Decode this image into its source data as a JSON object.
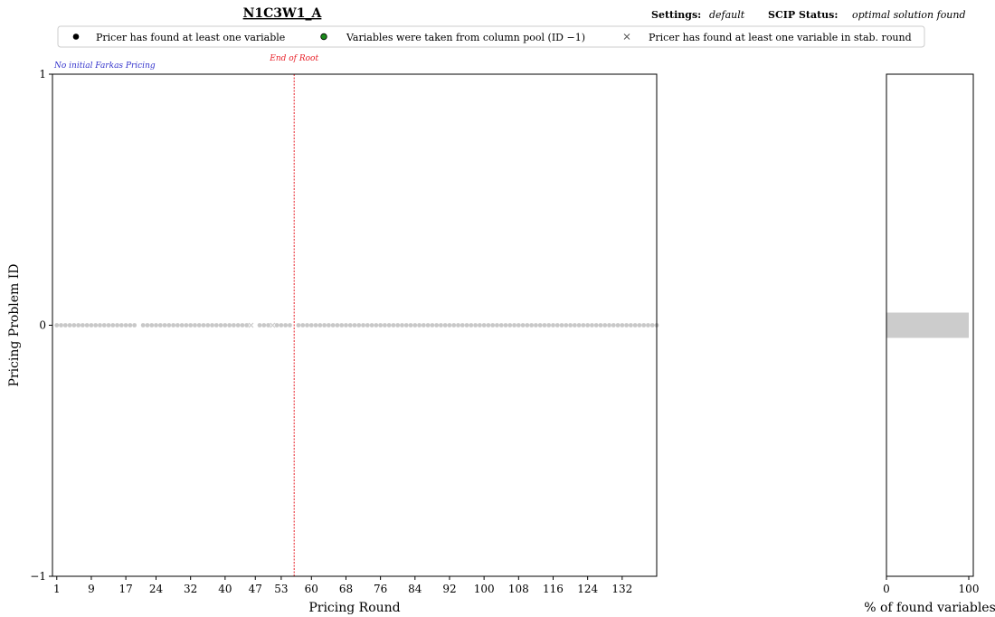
{
  "header": {
    "title": "N1C3W1_A",
    "settings_label": "Settings:",
    "settings_value": "default",
    "status_label": "SCIP Status:",
    "status_value": "optimal solution found"
  },
  "legend": {
    "items": [
      {
        "label": "Pricer has found at least one variable",
        "marker": "dot",
        "color": "#000000"
      },
      {
        "label": "Variables were taken from column pool (ID −1)",
        "marker": "dot",
        "color": "#1a8a1a"
      },
      {
        "label": "Pricer has found at least one variable in stab. round",
        "marker": "cross",
        "color": "#555555"
      }
    ]
  },
  "chart_data": [
    {
      "type": "scatter",
      "name": "pricing-rounds",
      "xlabel": "Pricing Round",
      "ylabel": "Pricing Problem ID",
      "xlim": [
        0,
        140
      ],
      "ylim": [
        -1,
        1
      ],
      "xticks": [
        1,
        9,
        17,
        24,
        32,
        40,
        47,
        53,
        60,
        68,
        76,
        84,
        92,
        100,
        108,
        116,
        124,
        132
      ],
      "yticks": [
        -1,
        0,
        1
      ],
      "point_color": "#c8c8c8",
      "y_value": 0,
      "dot_rounds_ranges": [
        [
          1,
          19
        ],
        [
          21,
          45
        ],
        [
          48,
          50
        ],
        [
          52,
          55
        ],
        [
          57,
          140
        ]
      ],
      "cross_rounds": [
        46,
        51
      ],
      "farkas_note": "No initial Farkas Pricing",
      "farkas_color": "#3333cc",
      "end_of_root": {
        "x": 56,
        "label": "End of Root",
        "color": "#e8222a"
      }
    },
    {
      "type": "bar",
      "orientation": "horizontal",
      "name": "found-variables",
      "xlabel": "% of found variables",
      "xlim": [
        0,
        100
      ],
      "xticks": [
        0,
        100
      ],
      "ylim": [
        -1,
        1
      ],
      "categories": [
        "0"
      ],
      "values": [
        100
      ],
      "bar_color": "#cccccc"
    }
  ]
}
